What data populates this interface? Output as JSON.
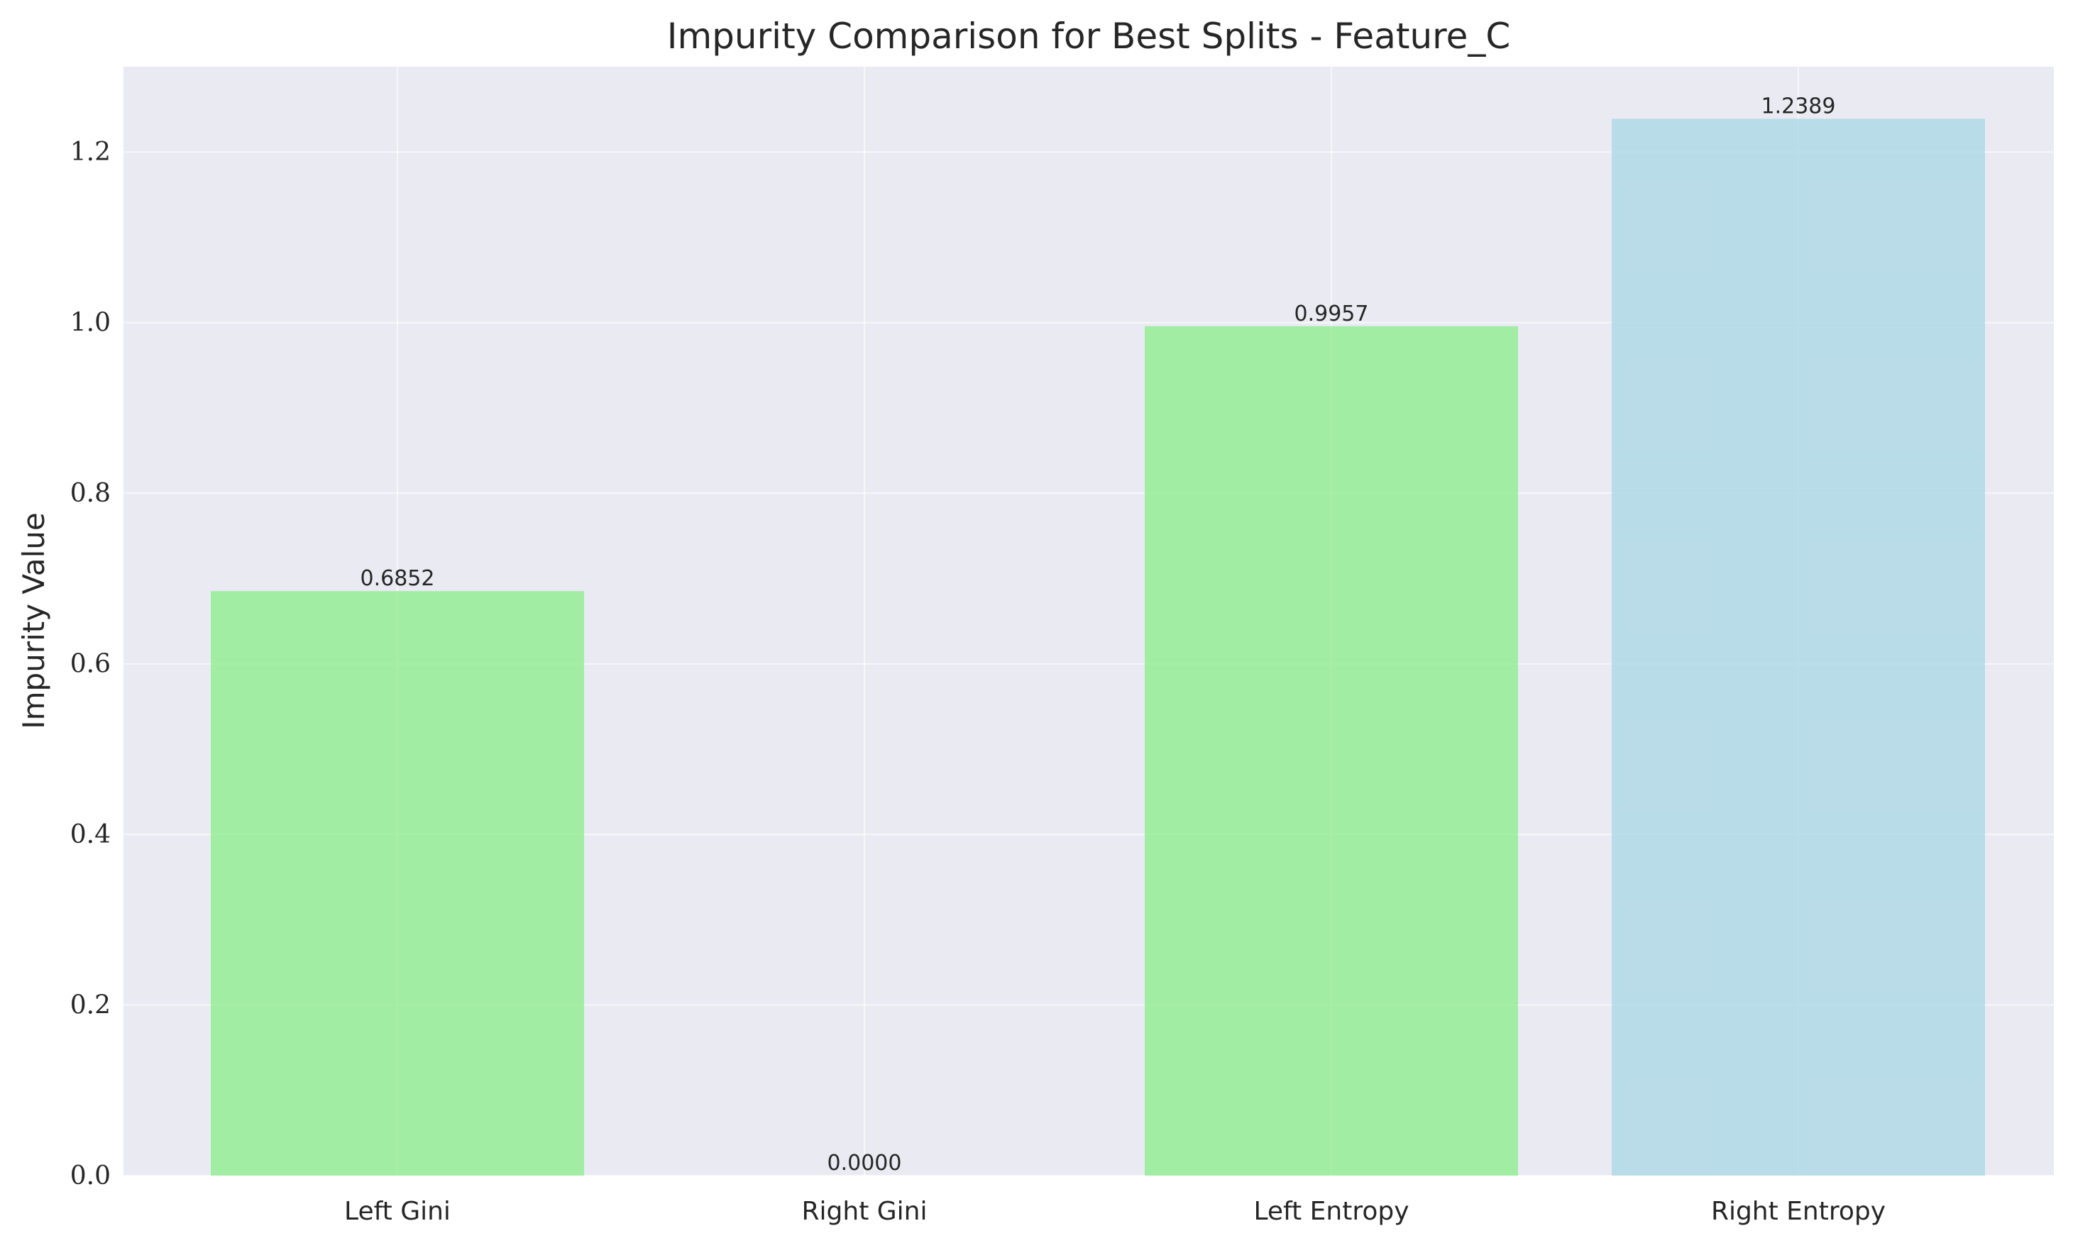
{
  "chart_data": {
    "type": "bar",
    "title": "Impurity Comparison for Best Splits - Feature_C",
    "xlabel": "",
    "ylabel": "Impurity Value",
    "categories": [
      "Left Gini",
      "Right Gini",
      "Left Entropy",
      "Right Entropy"
    ],
    "values": [
      0.6852,
      0.0,
      0.9957,
      1.2389
    ],
    "data_labels": [
      "0.6852",
      "0.0000",
      "0.9957",
      "1.2389"
    ],
    "bar_colors": [
      "#90ee90",
      "#90ee90",
      "#90ee90",
      "#add8e6"
    ],
    "ylim": [
      0,
      1.3
    ],
    "yticks": [
      0.0,
      0.2,
      0.4,
      0.6,
      0.8,
      1.0,
      1.2
    ],
    "ytick_labels": [
      "0.0",
      "0.2",
      "0.4",
      "0.6",
      "0.8",
      "1.0",
      "1.2"
    ],
    "grid": true,
    "background": "#eaeaf2"
  }
}
